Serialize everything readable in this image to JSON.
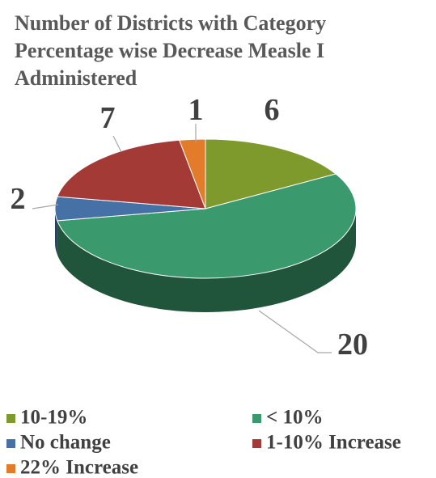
{
  "chart_data": {
    "type": "pie",
    "title": "Number of Districts with Category Percentage wise Decrease Measle I Administered",
    "categories": [
      "10-19%",
      "< 10%",
      "No change",
      "1-10% Increase",
      "22% Increase"
    ],
    "values": [
      6,
      20,
      2,
      7,
      1
    ],
    "colors": [
      "#7f9a2c",
      "#3b9a6d",
      "#4571a6",
      "#a43a36",
      "#e27c2b"
    ],
    "legend": "bottom"
  }
}
